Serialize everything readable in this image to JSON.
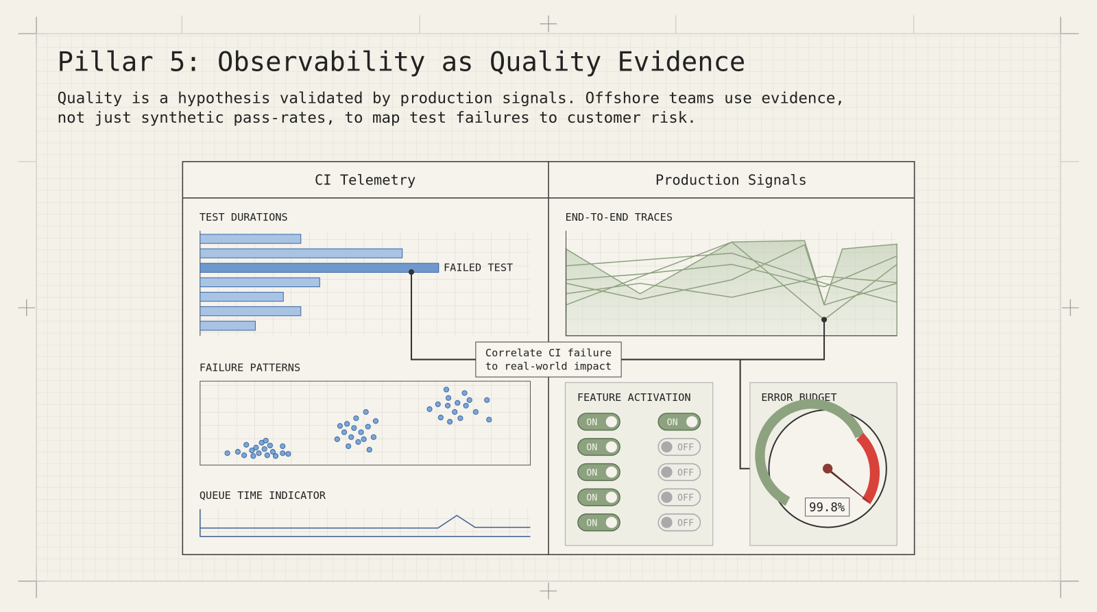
{
  "title": "Pillar 5: Observability as Quality Evidence",
  "subtitle": [
    "Quality is a hypothesis validated by production signals. Offshore teams use evidence,",
    "not just synthetic pass-rates, to map test failures to customer risk."
  ],
  "panels": [
    {
      "title": "CI Telemetry"
    },
    {
      "title": "Production Signals"
    }
  ],
  "test_durations": {
    "label": "TEST DURATIONS",
    "values": [
      144,
      289,
      341,
      171,
      119,
      144,
      79
    ],
    "xlim": [
      0,
      472
    ],
    "colors": [
      "#a9c3e3",
      "#a9c3e3",
      "#6f99cc",
      "#a9c3e3",
      "#a9c3e3",
      "#a9c3e3",
      "#a9c3e3"
    ],
    "failed_label": "FAILED TEST"
  },
  "failure_patterns": {
    "label": "FAILURE PATTERNS"
  },
  "queue_time": {
    "label": "QUEUE TIME INDICATOR"
  },
  "traces": {
    "label": "END-TO-END TRACES"
  },
  "callout": [
    "Correlate CI failure",
    "to real-world impact"
  ],
  "feature_activation": {
    "label": "FEATURE ACTIVATION",
    "toggles": [
      [
        "ON",
        "ON"
      ],
      [
        "ON",
        "OFF"
      ],
      [
        "ON",
        "OFF"
      ],
      [
        "ON",
        "OFF"
      ],
      [
        "ON",
        "OFF"
      ]
    ]
  },
  "error_budget": {
    "label": "ERROR BUDGET",
    "reading": "99.8%"
  }
}
